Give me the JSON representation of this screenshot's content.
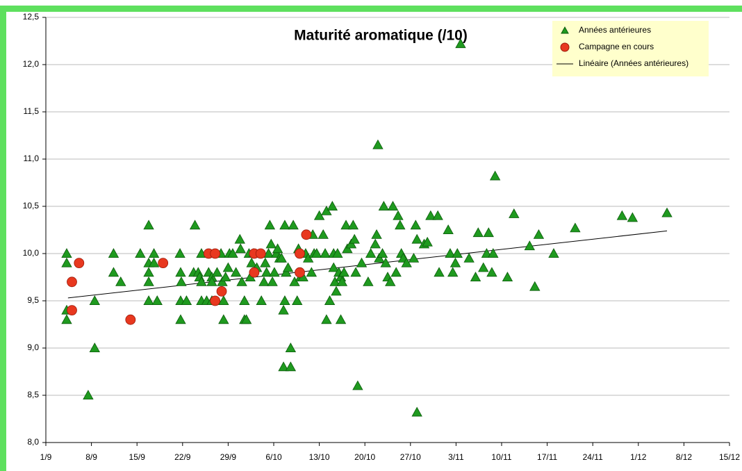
{
  "chart_data": {
    "type": "scatter",
    "title": "Maturité aromatique (/10)",
    "xlim": [
      0,
      105
    ],
    "xticks": [
      {
        "value": 0,
        "label": "1/9"
      },
      {
        "value": 7,
        "label": "8/9"
      },
      {
        "value": 14,
        "label": "15/9"
      },
      {
        "value": 21,
        "label": "22/9"
      },
      {
        "value": 28,
        "label": "29/9"
      },
      {
        "value": 35,
        "label": "6/10"
      },
      {
        "value": 42,
        "label": "13/10"
      },
      {
        "value": 49,
        "label": "20/10"
      },
      {
        "value": 56,
        "label": "27/10"
      },
      {
        "value": 63,
        "label": "3/11"
      },
      {
        "value": 70,
        "label": "10/11"
      },
      {
        "value": 77,
        "label": "17/11"
      },
      {
        "value": 84,
        "label": "24/11"
      },
      {
        "value": 91,
        "label": "1/12"
      },
      {
        "value": 98,
        "label": "8/12"
      },
      {
        "value": 105,
        "label": "15/12"
      }
    ],
    "ylim": [
      8.0,
      12.5
    ],
    "yticks": [
      {
        "value": 8.0,
        "label": "8,0"
      },
      {
        "value": 8.5,
        "label": "8,5"
      },
      {
        "value": 9.0,
        "label": "9,0"
      },
      {
        "value": 9.5,
        "label": "9,5"
      },
      {
        "value": 10.0,
        "label": "10,0"
      },
      {
        "value": 10.5,
        "label": "10,5"
      },
      {
        "value": 11.0,
        "label": "11,0"
      },
      {
        "value": 11.5,
        "label": "11,5"
      },
      {
        "value": 12.0,
        "label": "12,0"
      },
      {
        "value": 12.5,
        "label": "12,5"
      }
    ],
    "grid": true,
    "legend": "top-right",
    "series": [
      {
        "name": "Années antérieures",
        "marker": "triangle",
        "color": "#1f9a1f",
        "x": [
          3.2,
          3.2,
          3.2,
          3.2,
          6.5,
          7.5,
          7.5,
          10.4,
          10.4,
          11.5,
          14.5,
          15.8,
          15.8,
          15.8,
          15.8,
          15.8,
          16.6,
          16.6,
          17.1,
          20.6,
          20.7,
          20.8,
          20.7,
          20.7,
          21.6,
          22.9,
          22.7,
          23.4,
          23.6,
          23.9,
          23.9,
          23.9,
          24.7,
          25.0,
          25.5,
          25.5,
          25.5,
          26.3,
          26.9,
          27.1,
          27.3,
          27.3,
          27.6,
          28.0,
          28.2,
          28.7,
          29.2,
          29.8,
          29.9,
          30.1,
          30.5,
          30.5,
          30.8,
          31.2,
          31.4,
          31.6,
          31.9,
          32.4,
          33.1,
          33.5,
          33.7,
          33.9,
          34.2,
          34.4,
          34.6,
          34.8,
          35.1,
          35.4,
          35.6,
          35.9,
          36.2,
          36.5,
          36.5,
          36.7,
          36.7,
          36.9,
          37.2,
          37.6,
          37.6,
          38.0,
          38.2,
          38.6,
          38.8,
          39.1,
          39.5,
          39.9,
          40.3,
          40.8,
          41.0,
          41.2,
          41.6,
          42.0,
          42.6,
          42.9,
          43.1,
          43.1,
          43.6,
          44.0,
          44.2,
          44.2,
          44.4,
          44.6,
          44.8,
          45.0,
          45.3,
          45.3,
          45.5,
          45.8,
          46.1,
          46.3,
          46.9,
          47.2,
          47.4,
          47.6,
          47.9,
          48.5,
          49.5,
          49.9,
          50.6,
          50.8,
          51.0,
          51.2,
          51.7,
          51.9,
          52.2,
          52.5,
          52.9,
          53.3,
          53.8,
          54.1,
          54.4,
          54.6,
          54.9,
          55.4,
          56.5,
          56.8,
          57.0,
          57.0,
          58.1,
          58.6,
          59.1,
          60.2,
          60.4,
          61.8,
          62.1,
          62.5,
          62.9,
          63.2,
          63.7,
          65.0,
          66.0,
          66.4,
          67.2,
          67.7,
          68.0,
          68.5,
          68.7,
          69.0,
          70.9,
          71.9,
          74.3,
          75.1,
          75.7,
          78.0,
          81.3,
          88.5,
          90.1,
          95.4
        ],
        "values": [
          10.0,
          9.9,
          9.4,
          9.3,
          8.5,
          9.5,
          9.0,
          10.0,
          9.8,
          9.7,
          10.0,
          10.3,
          9.9,
          9.8,
          9.7,
          9.5,
          10.0,
          9.9,
          9.5,
          10.0,
          9.8,
          9.7,
          9.5,
          9.3,
          9.5,
          10.3,
          9.8,
          9.8,
          9.75,
          10.0,
          9.7,
          9.5,
          9.5,
          9.8,
          9.75,
          9.7,
          9.5,
          9.8,
          10.0,
          9.7,
          9.5,
          9.3,
          9.75,
          9.85,
          10.0,
          10.0,
          9.8,
          10.15,
          10.05,
          9.7,
          9.5,
          9.3,
          9.3,
          10.0,
          9.75,
          9.9,
          10.0,
          9.85,
          9.5,
          9.7,
          9.9,
          9.8,
          10.0,
          10.3,
          10.1,
          9.7,
          9.8,
          10.0,
          10.05,
          9.95,
          9.95,
          9.4,
          8.8,
          10.3,
          9.5,
          9.8,
          9.85,
          9.0,
          8.8,
          10.3,
          9.7,
          9.5,
          10.05,
          9.75,
          9.75,
          10.0,
          9.95,
          9.8,
          10.2,
          10.0,
          10.0,
          10.4,
          10.2,
          10.0,
          10.45,
          9.3,
          9.5,
          10.5,
          10.0,
          9.85,
          9.7,
          9.6,
          10.0,
          9.8,
          9.75,
          9.3,
          9.7,
          9.8,
          10.3,
          10.05,
          10.1,
          10.3,
          10.15,
          9.8,
          8.6,
          9.9,
          9.7,
          10.0,
          10.1,
          10.2,
          11.15,
          9.95,
          10.0,
          10.5,
          9.9,
          9.75,
          9.7,
          10.5,
          9.8,
          10.4,
          10.3,
          10.0,
          9.95,
          9.9,
          9.95,
          10.3,
          10.15,
          8.32,
          10.1,
          10.12,
          10.4,
          10.4,
          9.8,
          10.25,
          10.0,
          9.8,
          9.9,
          10.0,
          12.22,
          9.95,
          9.75,
          10.22,
          9.85,
          10.0,
          10.22,
          9.8,
          10.0,
          10.82,
          9.75,
          10.42,
          10.08,
          9.65,
          10.2,
          10.0,
          10.27,
          10.4,
          10.38,
          10.43
        ]
      },
      {
        "name": "Campagne en cours",
        "marker": "circle",
        "color": "#e8381f",
        "x": [
          4,
          4,
          5.1,
          13,
          18,
          25,
          26,
          26,
          27,
          32,
          33,
          32,
          39,
          39,
          40
        ],
        "values": [
          9.4,
          9.7,
          9.9,
          9.3,
          9.9,
          10.0,
          10.0,
          9.5,
          9.6,
          10.0,
          10.0,
          9.8,
          10.0,
          9.8,
          10.2
        ]
      },
      {
        "name": "Linéaire (Années antérieures)",
        "marker": "line",
        "color": "#000000",
        "x": [
          3.4,
          95.4
        ],
        "values": [
          9.53,
          10.24
        ]
      }
    ]
  }
}
